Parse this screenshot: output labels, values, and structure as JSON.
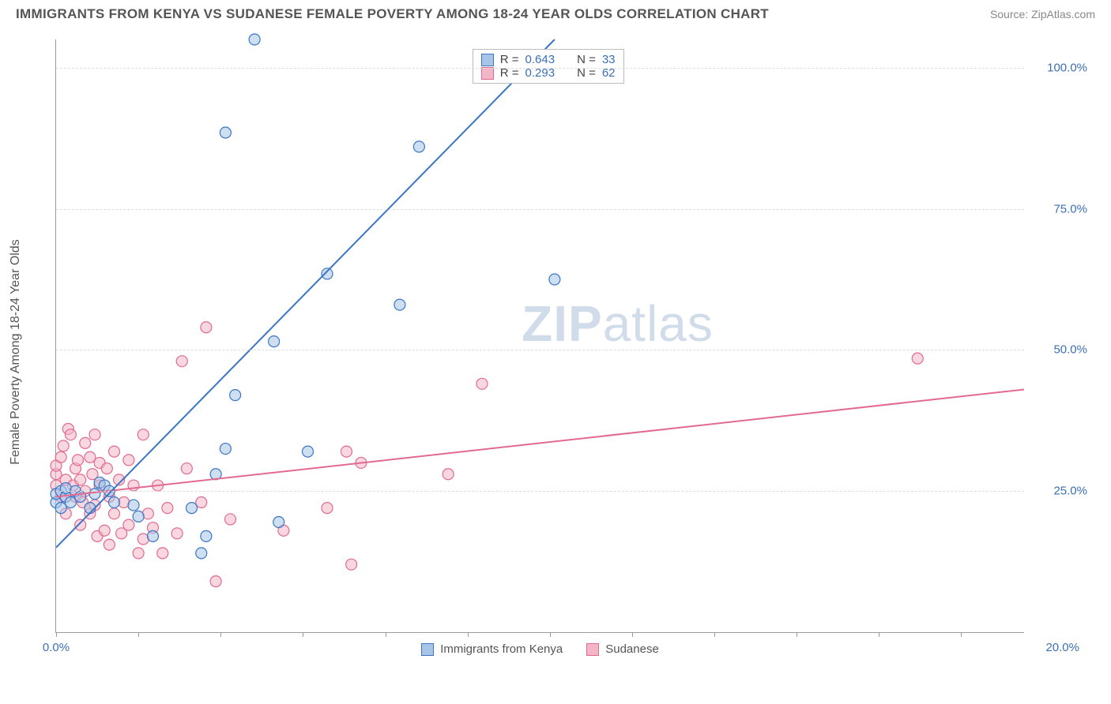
{
  "title": "IMMIGRANTS FROM KENYA VS SUDANESE FEMALE POVERTY AMONG 18-24 YEAR OLDS CORRELATION CHART",
  "source_label": "Source: ",
  "source_name": "ZipAtlas.com",
  "y_axis_label": "Female Poverty Among 18-24 Year Olds",
  "watermark_bold": "ZIP",
  "watermark_rest": "atlas",
  "chart": {
    "type": "scatter",
    "xlim": [
      0,
      20
    ],
    "ylim": [
      0,
      105
    ],
    "x_tick_positions": [
      0,
      1.7,
      3.4,
      5.1,
      6.8,
      8.5,
      10.2,
      11.9,
      13.6,
      15.3,
      17.0,
      18.7
    ],
    "x_tick_labels": {
      "left": "0.0%",
      "right": "20.0%"
    },
    "y_gridlines": [
      25,
      50,
      75,
      100
    ],
    "y_tick_labels": [
      "25.0%",
      "50.0%",
      "75.0%",
      "100.0%"
    ],
    "background_color": "#ffffff",
    "grid_color": "#dddddd",
    "axis_color": "#999999",
    "marker_radius": 7,
    "marker_opacity": 0.55,
    "line_width": 2,
    "series": [
      {
        "name": "Immigrants from Kenya",
        "color_stroke": "#3b76c4",
        "color_fill": "#a8c5e8",
        "r_value": "0.643",
        "n_value": "33",
        "regression": {
          "x1": 0,
          "y1": 15,
          "x2": 10.3,
          "y2": 105
        },
        "points": [
          [
            0.0,
            23
          ],
          [
            0.0,
            24.5
          ],
          [
            0.1,
            25
          ],
          [
            0.1,
            22
          ],
          [
            0.2,
            24
          ],
          [
            0.2,
            25.5
          ],
          [
            0.3,
            23
          ],
          [
            0.4,
            25
          ],
          [
            0.5,
            24
          ],
          [
            0.7,
            22
          ],
          [
            0.8,
            24.5
          ],
          [
            0.9,
            26.5
          ],
          [
            1.0,
            26
          ],
          [
            1.1,
            25
          ],
          [
            1.6,
            22.5
          ],
          [
            1.7,
            20.5
          ],
          [
            2.0,
            17
          ],
          [
            2.8,
            22
          ],
          [
            3.0,
            14
          ],
          [
            3.1,
            17
          ],
          [
            3.3,
            28
          ],
          [
            3.5,
            32.5
          ],
          [
            3.7,
            42
          ],
          [
            4.6,
            19.5
          ],
          [
            4.1,
            105
          ],
          [
            3.5,
            88.5
          ],
          [
            4.5,
            51.5
          ],
          [
            5.2,
            32
          ],
          [
            5.6,
            63.5
          ],
          [
            7.1,
            58
          ],
          [
            7.5,
            86
          ],
          [
            10.3,
            62.5
          ],
          [
            1.2,
            23
          ]
        ]
      },
      {
        "name": "Sudanese",
        "color_stroke": "#e36a8f",
        "color_fill": "#f3b6c9",
        "r_value": "0.293",
        "n_value": "62",
        "regression": {
          "x1": 0,
          "y1": 24,
          "x2": 20,
          "y2": 43
        },
        "points": [
          [
            0.0,
            26
          ],
          [
            0.0,
            28
          ],
          [
            0.0,
            29.5
          ],
          [
            0.1,
            24
          ],
          [
            0.1,
            31
          ],
          [
            0.15,
            33
          ],
          [
            0.2,
            21
          ],
          [
            0.2,
            27
          ],
          [
            0.25,
            36
          ],
          [
            0.3,
            35
          ],
          [
            0.35,
            26
          ],
          [
            0.4,
            24
          ],
          [
            0.4,
            29
          ],
          [
            0.45,
            30.5
          ],
          [
            0.5,
            27
          ],
          [
            0.5,
            19
          ],
          [
            0.55,
            23
          ],
          [
            0.6,
            33.5
          ],
          [
            0.6,
            25
          ],
          [
            0.7,
            21
          ],
          [
            0.7,
            31
          ],
          [
            0.75,
            28
          ],
          [
            0.8,
            35
          ],
          [
            0.8,
            22.5
          ],
          [
            0.85,
            17
          ],
          [
            0.9,
            26
          ],
          [
            0.9,
            30
          ],
          [
            1.0,
            18
          ],
          [
            1.05,
            29
          ],
          [
            1.1,
            15.5
          ],
          [
            1.1,
            24
          ],
          [
            1.2,
            32
          ],
          [
            1.2,
            21
          ],
          [
            1.3,
            27
          ],
          [
            1.35,
            17.5
          ],
          [
            1.4,
            23
          ],
          [
            1.5,
            30.5
          ],
          [
            1.5,
            19
          ],
          [
            1.6,
            26
          ],
          [
            1.7,
            14
          ],
          [
            1.8,
            35
          ],
          [
            1.8,
            16.5
          ],
          [
            1.9,
            21
          ],
          [
            2.0,
            18.5
          ],
          [
            2.1,
            26
          ],
          [
            2.2,
            14
          ],
          [
            2.3,
            22
          ],
          [
            2.5,
            17.5
          ],
          [
            2.6,
            48
          ],
          [
            2.7,
            29
          ],
          [
            3.0,
            23
          ],
          [
            3.1,
            54
          ],
          [
            3.3,
            9
          ],
          [
            3.6,
            20
          ],
          [
            4.7,
            18
          ],
          [
            5.6,
            22
          ],
          [
            6.0,
            32
          ],
          [
            6.1,
            12
          ],
          [
            6.3,
            30
          ],
          [
            8.1,
            28
          ],
          [
            8.8,
            44
          ],
          [
            17.8,
            48.5
          ]
        ]
      }
    ]
  },
  "legend_top": {
    "rows": [
      {
        "swatch_fill": "#a8c5e8",
        "swatch_stroke": "#3b76c4",
        "r": "0.643",
        "n": "33"
      },
      {
        "swatch_fill": "#f3b6c9",
        "swatch_stroke": "#e36a8f",
        "r": "0.293",
        "n": "62"
      }
    ],
    "r_label": "R =",
    "n_label": "N ="
  },
  "legend_bottom": [
    {
      "label": "Immigrants from Kenya",
      "swatch_fill": "#a8c5e8",
      "swatch_stroke": "#3b76c4"
    },
    {
      "label": "Sudanese",
      "swatch_fill": "#f3b6c9",
      "swatch_stroke": "#e36a8f"
    }
  ]
}
